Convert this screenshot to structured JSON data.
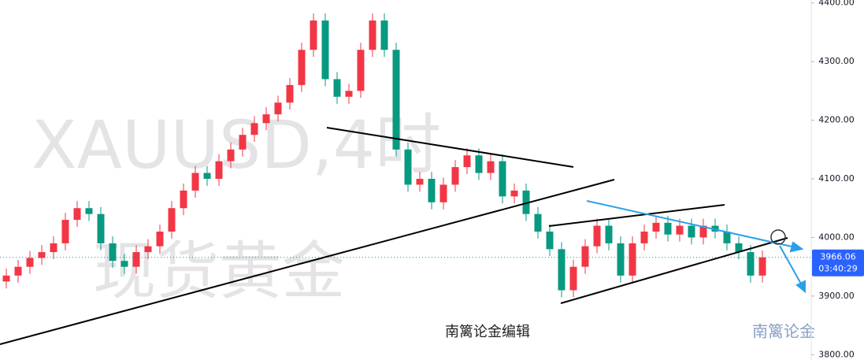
{
  "chart_data": {
    "type": "candlestick",
    "watermarks": [
      "XAUUSD,4时",
      "现货黄金"
    ],
    "annotation": "南篱论金编辑",
    "logo": "南篱论金",
    "last_price": 3966.06,
    "last_price_label": "3966.06",
    "countdown": "03:40:29",
    "up_color": "#f23645",
    "down_color": "#089981",
    "grid": false,
    "ylim": [
      3791,
      4405
    ],
    "yticks": [
      {
        "value": 3800,
        "label": "3800.00"
      },
      {
        "value": 3900,
        "label": "3900.00"
      },
      {
        "value": 4000,
        "label": "4000.00"
      },
      {
        "value": 4100,
        "label": "4100.00"
      },
      {
        "value": 4200,
        "label": "4200.00"
      },
      {
        "value": 4300,
        "label": "4300.00"
      },
      {
        "value": 4400,
        "label": "4400.00"
      }
    ],
    "open": [
      3925,
      3935,
      3950,
      3965,
      3975,
      3990,
      4030,
      4050,
      4040,
      3990,
      3960,
      3950,
      3975,
      3985,
      4010,
      4050,
      4080,
      4110,
      4100,
      4130,
      4150,
      4175,
      4195,
      4210,
      4230,
      4260,
      4320,
      4370,
      4270,
      4240,
      4250,
      4320,
      4370,
      4320,
      4150,
      4090,
      4100,
      4060,
      4090,
      4120,
      4140,
      4110,
      4130,
      4070,
      4080,
      4040,
      4010,
      3980,
      3910,
      3950,
      3985,
      4020,
      3990,
      3935,
      3990,
      4010,
      4025,
      4005,
      4020,
      4000,
      4020,
      4010,
      3990,
      3975,
      3935
    ],
    "high": [
      3947,
      3962,
      3977,
      3987,
      4002,
      4042,
      4062,
      4062,
      4052,
      4002,
      3972,
      3987,
      3997,
      4022,
      4062,
      4092,
      4122,
      4122,
      4142,
      4162,
      4187,
      4207,
      4222,
      4242,
      4272,
      4332,
      4382,
      4382,
      4282,
      4262,
      4332,
      4382,
      4382,
      4332,
      4162,
      4112,
      4112,
      4102,
      4132,
      4152,
      4152,
      4142,
      4142,
      4092,
      4092,
      4052,
      4022,
      3992,
      3962,
      3997,
      4032,
      4032,
      4002,
      4002,
      4022,
      4037,
      4037,
      4032,
      4032,
      4032,
      4032,
      4022,
      4002,
      3987,
      3978
    ],
    "low": [
      3913,
      3923,
      3938,
      3953,
      3963,
      3978,
      4018,
      4028,
      3978,
      3948,
      3938,
      3938,
      3963,
      3973,
      3998,
      4038,
      4068,
      4088,
      4088,
      4118,
      4138,
      4163,
      4183,
      4198,
      4218,
      4248,
      4308,
      4258,
      4228,
      4228,
      4238,
      4308,
      4308,
      4138,
      4078,
      4078,
      4048,
      4048,
      4078,
      4108,
      4098,
      4098,
      4058,
      4058,
      4028,
      3998,
      3968,
      3898,
      3898,
      3938,
      3973,
      3978,
      3923,
      3923,
      3978,
      3998,
      3993,
      3993,
      3988,
      3988,
      3998,
      3978,
      3963,
      3923,
      3923
    ],
    "close": [
      3935,
      3950,
      3965,
      3975,
      3990,
      4030,
      4050,
      4040,
      3990,
      3960,
      3950,
      3975,
      3985,
      4010,
      4050,
      4080,
      4110,
      4100,
      4130,
      4150,
      4175,
      4195,
      4210,
      4230,
      4260,
      4320,
      4370,
      4270,
      4240,
      4250,
      4320,
      4370,
      4320,
      4150,
      4090,
      4100,
      4060,
      4090,
      4120,
      4140,
      4110,
      4130,
      4070,
      4080,
      4040,
      4010,
      3980,
      3910,
      3950,
      3985,
      4020,
      3990,
      3935,
      3990,
      4010,
      4025,
      4005,
      4020,
      4000,
      4020,
      4010,
      3990,
      3975,
      3935,
      3966.06
    ]
  }
}
